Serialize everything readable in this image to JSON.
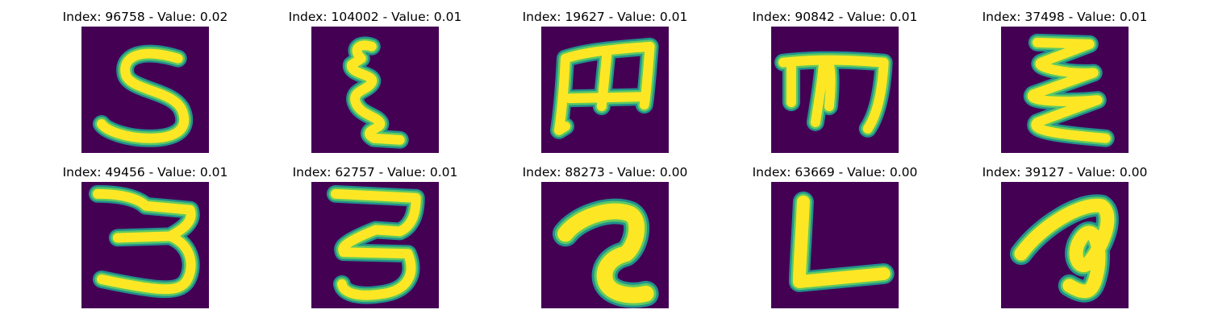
{
  "figure": {
    "colormap": "viridis",
    "colors": {
      "background": "#440154",
      "edge": "#21918c",
      "mid": "#5ec962",
      "stroke": "#fde725"
    },
    "panels": [
      {
        "title": "Index: 96758 - Value: 0.02",
        "index": 96758,
        "value": 0.02,
        "glyph": "S"
      },
      {
        "title": "Index: 104002 - Value: 0.01",
        "index": 104002,
        "value": 0.01,
        "glyph": "ξ"
      },
      {
        "title": "Index: 19627 - Value: 0.01",
        "index": 19627,
        "value": 0.01,
        "glyph": "m"
      },
      {
        "title": "Index: 90842 - Value: 0.01",
        "index": 90842,
        "value": 0.01,
        "glyph": "m"
      },
      {
        "title": "Index: 37498 - Value: 0.01",
        "index": 37498,
        "value": 0.01,
        "glyph": "ξ"
      },
      {
        "title": "Index: 49456 - Value: 0.01",
        "index": 49456,
        "value": 0.01,
        "glyph": "3"
      },
      {
        "title": "Index: 62757 - Value: 0.01",
        "index": 62757,
        "value": 0.01,
        "glyph": "3"
      },
      {
        "title": "Index: 88273 - Value: 0.00",
        "index": 88273,
        "value": 0.0,
        "glyph": "a"
      },
      {
        "title": "Index: 63669 - Value: 0.00",
        "index": 63669,
        "value": 0.0,
        "glyph": "L"
      },
      {
        "title": "Index: 39127 - Value: 0.00",
        "index": 39127,
        "value": 0.0,
        "glyph": "a"
      }
    ]
  }
}
